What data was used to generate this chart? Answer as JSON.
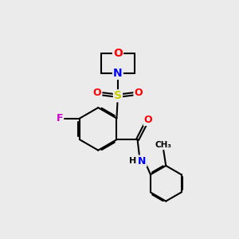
{
  "background_color": "#ebebeb",
  "atom_colors": {
    "O": "#ff0000",
    "N": "#0000ff",
    "S": "#cccc00",
    "F": "#cc00cc",
    "C": "#000000",
    "H": "#000000"
  },
  "bond_color": "#000000",
  "bond_width": 1.5
}
